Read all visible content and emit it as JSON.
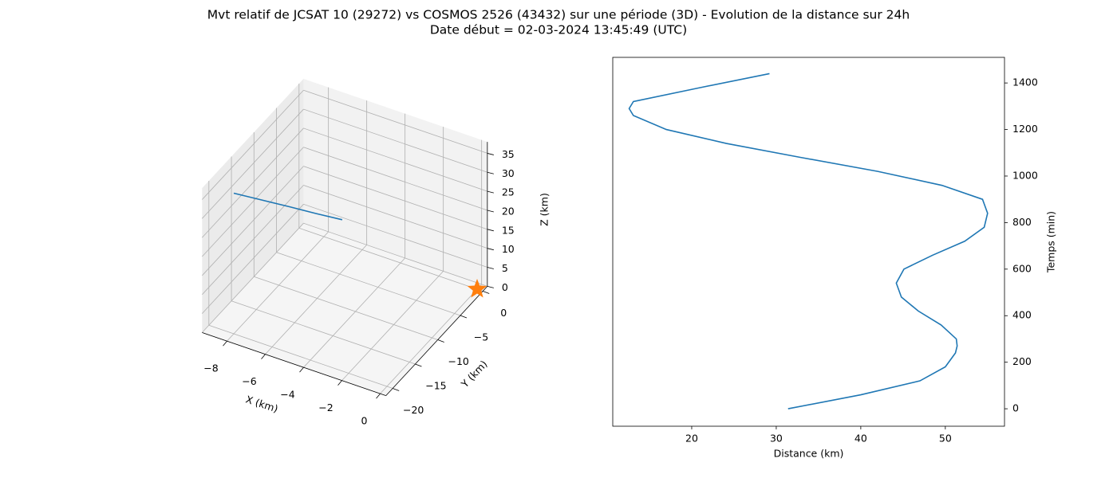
{
  "title": "Mvt relatif de JCSAT 10 (29272) vs COSMOS 2526 (43432) sur une période (3D) - Evolution de la distance sur 24h",
  "subtitle": "Date début = 02-03-2024 13:45:49 (UTC)",
  "chart_data": [
    {
      "type": "line3d",
      "xlabel": "X (km)",
      "ylabel": "Y (km)",
      "zlabel": "Z (km)",
      "xlim": [
        -9.3,
        0.3
      ],
      "ylim": [
        -21.5,
        1
      ],
      "zlim": [
        0,
        38
      ],
      "xticks": [
        {
          "value": -8,
          "label": "−8"
        },
        {
          "value": -6,
          "label": "−6"
        },
        {
          "value": -4,
          "label": "−4"
        },
        {
          "value": -2,
          "label": "−2"
        },
        0
      ],
      "yticks": [
        {
          "value": -20,
          "label": "−20"
        },
        {
          "value": -15,
          "label": "−15"
        },
        {
          "value": -10,
          "label": "−10"
        },
        {
          "value": -5,
          "label": "−5"
        },
        0
      ],
      "zticks": [
        0,
        5,
        10,
        15,
        20,
        25,
        30,
        35
      ],
      "grid": true,
      "series": [
        {
          "type": "line",
          "color": "#1f77b4",
          "x": [
            -8,
            -6.9,
            -5.8,
            -4.75,
            -3.75
          ],
          "y": [
            -20,
            -18.5,
            -17,
            -15.5,
            -14
          ],
          "z": [
            37,
            35.2,
            33.4,
            31.5,
            29.7
          ]
        },
        {
          "type": "scatter",
          "marker": "star",
          "color": "#ff7f0e",
          "x": [
            0
          ],
          "y": [
            0
          ],
          "z": [
            0
          ]
        }
      ]
    },
    {
      "type": "line",
      "xlabel": "Distance (km)",
      "ylabel": "Temps (min)",
      "xlim": [
        10.66,
        57.0
      ],
      "ylim": [
        -75,
        1510
      ],
      "xticks": [
        20,
        30,
        40,
        50
      ],
      "yticks": [
        0,
        200,
        400,
        600,
        800,
        1000,
        1200,
        1400
      ],
      "yaxis_side": "right",
      "series": [
        {
          "color": "#1f77b4",
          "x": [
            31.4,
            40.0,
            47.0,
            50.0,
            51.2,
            51.4,
            51.3,
            49.5,
            46.8,
            44.8,
            44.2,
            45.1,
            48.5,
            52.3,
            54.6,
            55.0,
            54.4,
            49.6,
            42.0,
            32.9,
            24.1,
            17.0,
            13.1,
            12.6,
            13.1,
            21.0,
            29.2
          ],
          "y": [
            0,
            60,
            120,
            180,
            240,
            270,
            300,
            360,
            420,
            480,
            540,
            600,
            660,
            720,
            780,
            840,
            900,
            960,
            1020,
            1080,
            1140,
            1200,
            1260,
            1290,
            1320,
            1380,
            1440
          ]
        }
      ]
    }
  ]
}
